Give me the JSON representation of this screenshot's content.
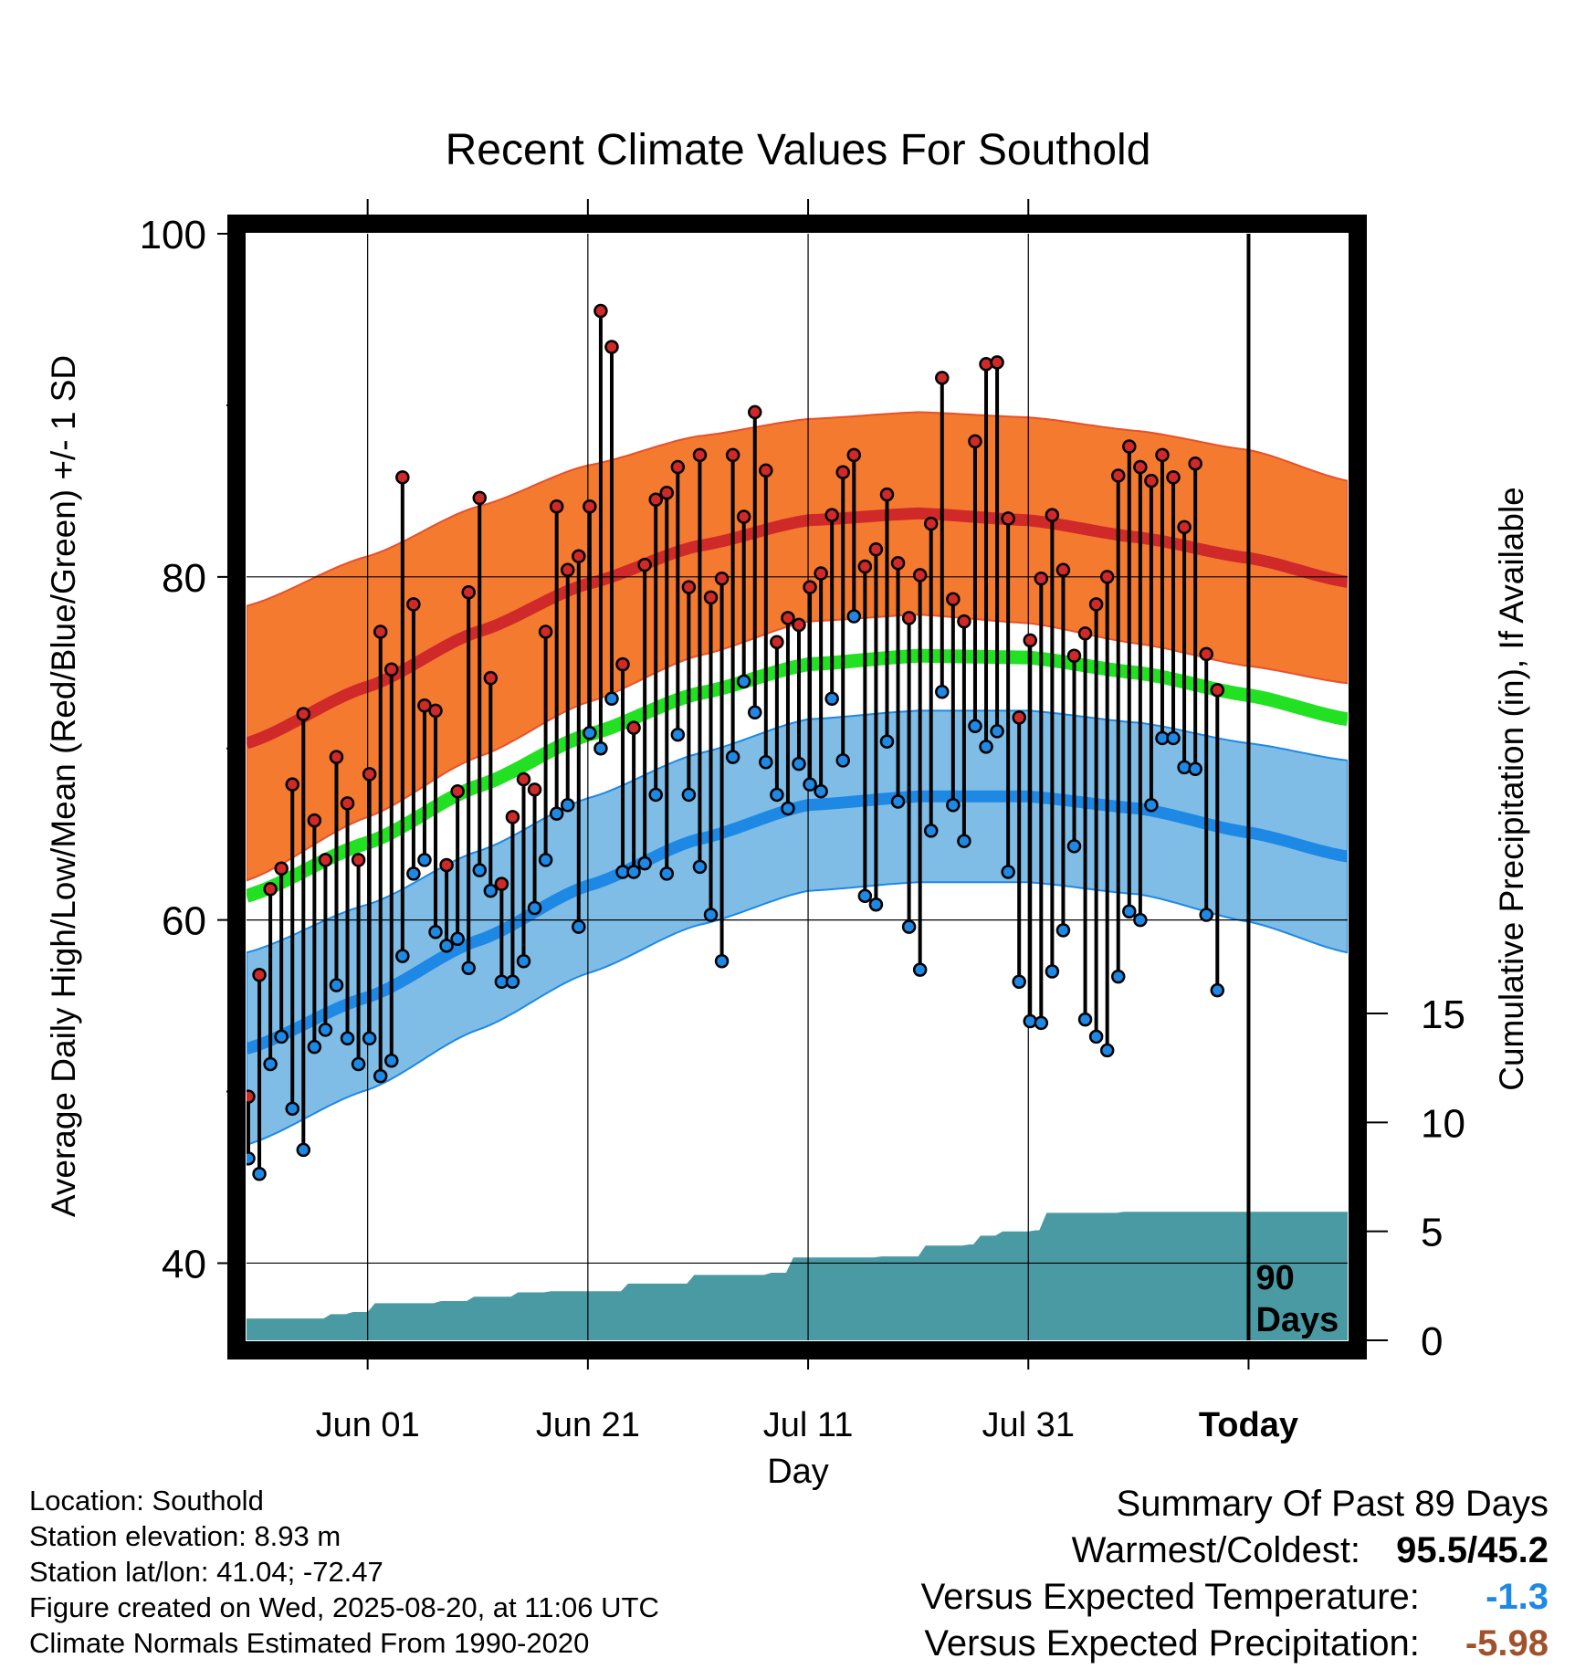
{
  "chart_data": {
    "type": "line",
    "title": "Recent Climate Values For Southold",
    "xlabel": "Day",
    "ylabel_left": "Average Daily High/Low/Mean (Red/Blue/Green) +/- 1 SD",
    "ylabel_right": "Cumulative Precipitation (in), If Available",
    "xlim": [
      "2025-05-21",
      "2025-08-29"
    ],
    "ylim": [
      35.5,
      100
    ],
    "y_ticks": [
      40,
      60,
      80,
      100
    ],
    "precip_ticks": [
      0,
      5,
      10,
      15
    ],
    "x_ticks": [
      {
        "date": "2025-06-01",
        "label": "Jun 01"
      },
      {
        "date": "2025-06-21",
        "label": "Jun 21"
      },
      {
        "date": "2025-07-11",
        "label": "Jul 11"
      },
      {
        "date": "2025-07-31",
        "label": "Jul 31"
      },
      {
        "date": "2025-08-20",
        "label": "Today"
      }
    ],
    "today_label": "90\nDays",
    "colors": {
      "high_band": "#f47a30",
      "high_line": "#cf2929",
      "low_band": "#7fbde6",
      "low_line": "#1e88e5",
      "mean_line": "#22e022",
      "precip": "#4a9aa4",
      "warm_text": "#000000",
      "temp_dev": "#1e88e5",
      "precip_dev": "#a0522d"
    },
    "normals": {
      "dates": [
        "2025-05-21",
        "2025-06-01",
        "2025-06-11",
        "2025-06-21",
        "2025-07-01",
        "2025-07-11",
        "2025-07-21",
        "2025-07-31",
        "2025-08-10",
        "2025-08-20",
        "2025-08-29"
      ],
      "high_mean": [
        70.3,
        73.6,
        76.8,
        79.6,
        81.8,
        83.3,
        83.7,
        83.3,
        82.3,
        81.1,
        79.7
      ],
      "high_sd": [
        8.0,
        7.6,
        7.3,
        6.9,
        6.4,
        5.9,
        5.9,
        6.0,
        6.2,
        6.3,
        5.9
      ],
      "low_mean": [
        52.5,
        55.5,
        58.8,
        62.0,
        64.7,
        66.7,
        67.2,
        67.2,
        66.5,
        65.1,
        63.7
      ],
      "low_sd": [
        5.6,
        5.4,
        5.2,
        5.1,
        5.0,
        5.0,
        5.0,
        5.0,
        5.0,
        5.2,
        5.6
      ],
      "mean": [
        61.4,
        64.5,
        67.8,
        70.8,
        73.2,
        74.9,
        75.4,
        75.3,
        74.4,
        73.1,
        71.7
      ]
    },
    "series": [
      {
        "name": "High",
        "start_date": "2025-05-21",
        "values": [
          49.7,
          56.8,
          61.8,
          63.0,
          67.9,
          72.0,
          65.8,
          63.5,
          69.5,
          66.8,
          63.5,
          68.5,
          76.8,
          74.6,
          85.8,
          78.4,
          72.5,
          72.2,
          63.2,
          67.5,
          79.1,
          84.6,
          74.1,
          62.1,
          66.0,
          68.2,
          67.6,
          76.8,
          84.1,
          80.4,
          81.2,
          84.1,
          95.5,
          93.4,
          74.9,
          71.2,
          80.7,
          84.5,
          84.9,
          86.4,
          79.4,
          87.1,
          78.8,
          79.9,
          87.1,
          83.5,
          89.6,
          86.2,
          76.2,
          77.6,
          77.2,
          79.4,
          80.2,
          83.6,
          86.1,
          87.1,
          80.6,
          81.6,
          84.8,
          80.8,
          77.6,
          80.1,
          83.1,
          91.6,
          78.7,
          77.4,
          87.9,
          92.4,
          92.5,
          83.4,
          71.8,
          76.3,
          79.9,
          83.6,
          80.4,
          75.4,
          76.7,
          78.4,
          80.0,
          85.9,
          87.6,
          86.4,
          85.6,
          87.1,
          85.8,
          82.9,
          86.6,
          75.5,
          73.4
        ],
        "color": "#cf2929"
      },
      {
        "name": "Low",
        "start_date": "2025-05-21",
        "values": [
          46.1,
          45.2,
          51.6,
          53.2,
          49.0,
          46.6,
          52.6,
          53.6,
          56.2,
          53.1,
          51.6,
          53.1,
          50.9,
          51.8,
          57.9,
          62.7,
          63.5,
          59.3,
          58.5,
          58.9,
          57.2,
          62.9,
          61.7,
          56.4,
          56.4,
          57.6,
          60.7,
          63.5,
          66.2,
          66.7,
          59.6,
          70.9,
          70.0,
          72.9,
          62.8,
          62.8,
          63.3,
          67.3,
          62.7,
          70.8,
          67.3,
          63.1,
          60.3,
          57.6,
          69.5,
          73.9,
          72.1,
          69.2,
          67.3,
          66.5,
          69.1,
          67.9,
          67.5,
          72.9,
          69.3,
          77.7,
          61.4,
          60.9,
          70.4,
          66.9,
          59.6,
          57.1,
          65.2,
          73.3,
          66.7,
          64.6,
          71.3,
          70.1,
          71.0,
          62.8,
          56.4,
          54.1,
          54.0,
          57.0,
          59.4,
          64.3,
          54.2,
          53.2,
          52.4,
          56.7,
          60.5,
          60.0,
          66.7,
          70.6,
          70.6,
          68.9,
          68.8,
          60.3,
          55.9
        ],
        "color": "#1e88e5"
      }
    ],
    "precipitation": {
      "dates": [
        "2025-05-21",
        "2025-05-26",
        "2025-05-28",
        "2025-05-30",
        "2025-06-01",
        "2025-06-07",
        "2025-06-10",
        "2025-06-14",
        "2025-06-17",
        "2025-06-24",
        "2025-06-30",
        "2025-07-07",
        "2025-07-09",
        "2025-07-17",
        "2025-07-21",
        "2025-07-25",
        "2025-07-26",
        "2025-07-28",
        "2025-07-31",
        "2025-08-01",
        "2025-08-08",
        "2025-08-29"
      ],
      "values": [
        1.0,
        1.0,
        1.2,
        1.3,
        1.7,
        1.8,
        2.0,
        2.2,
        2.25,
        2.6,
        3.0,
        3.1,
        3.8,
        3.85,
        4.35,
        4.4,
        4.8,
        5.0,
        5.05,
        5.85,
        5.9,
        5.92
      ],
      "color": "#4a9aa4"
    }
  },
  "info": {
    "location": "Location: Southold",
    "elevation": "Station elevation: 8.93 m",
    "latlon": "Station lat/lon: 41.04; -72.47",
    "created": "Figure created on Wed, 2025-08-20, at 11:06 UTC",
    "normals": "Climate Normals Estimated From 1990-2020"
  },
  "summary": {
    "title": "Summary Of Past 89 Days",
    "warm_label": "Warmest/Coldest:",
    "warm_value": "95.5/45.2",
    "temp_label": "Versus Expected Temperature:",
    "temp_value": "-1.3",
    "precip_label": "Versus Expected Precipitation:",
    "precip_value": "-5.98"
  }
}
